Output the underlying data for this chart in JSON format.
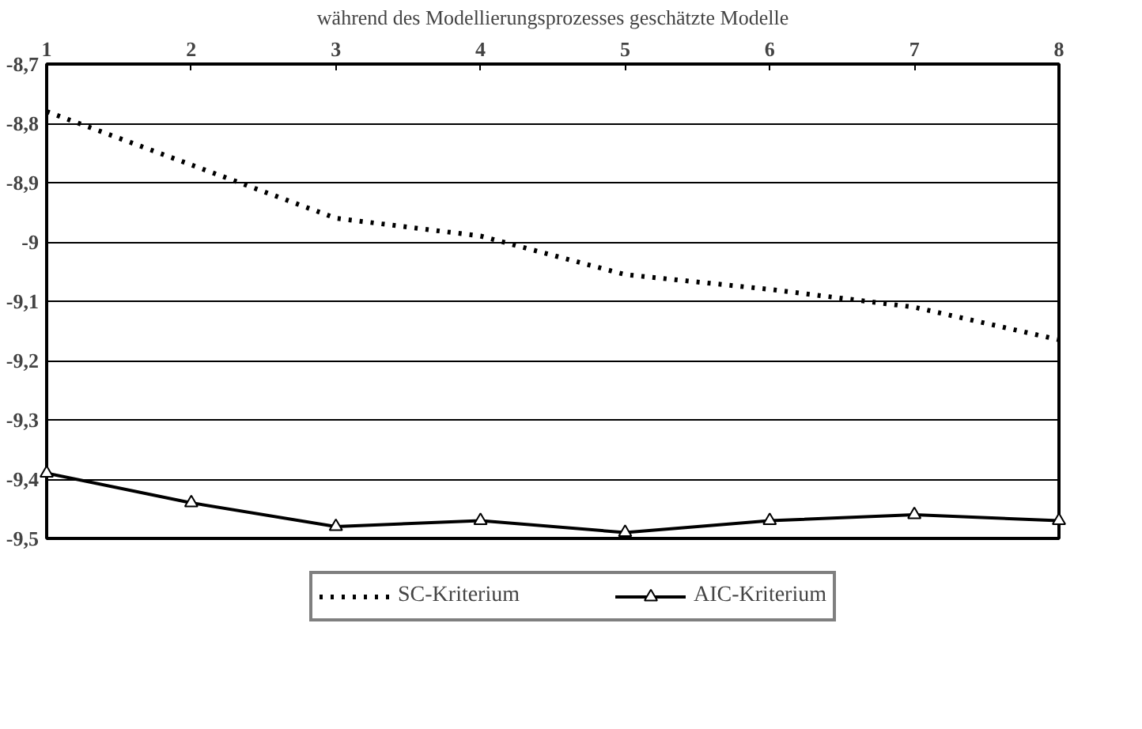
{
  "chart_data": {
    "type": "line",
    "xlabel": "während des Modellierungsprozesses geschätzte Modelle",
    "x": [
      1,
      2,
      3,
      4,
      5,
      6,
      7,
      8
    ],
    "xlim": [
      1,
      8
    ],
    "xticks": [
      1,
      2,
      3,
      4,
      5,
      6,
      7,
      8
    ],
    "ylim": [
      -9.5,
      -8.7
    ],
    "yticks": [
      {
        "value": -9.5,
        "label": "-9,5"
      },
      {
        "value": -9.4,
        "label": "-9,4"
      },
      {
        "value": -9.3,
        "label": "-9,3"
      },
      {
        "value": -9.2,
        "label": "-9,2"
      },
      {
        "value": -9.1,
        "label": "-9,1"
      },
      {
        "value": -9.0,
        "label": "-9"
      },
      {
        "value": -8.9,
        "label": "-8,9"
      },
      {
        "value": -8.8,
        "label": "-8,8"
      },
      {
        "value": -8.7,
        "label": "-8,7"
      }
    ],
    "grid": "y",
    "legend": "bottom",
    "series": [
      {
        "name": "SC-Kriterium",
        "color": "#000000",
        "line_style": "dotted",
        "marker": "none",
        "values": [
          -8.78,
          -8.87,
          -8.96,
          -8.99,
          -9.055,
          -9.08,
          -9.11,
          -9.165
        ]
      },
      {
        "name": "AIC-Kriterium",
        "color": "#000000",
        "line_style": "solid",
        "marker": "triangle",
        "values": [
          -9.39,
          -9.44,
          -9.48,
          -9.47,
          -9.49,
          -9.47,
          -9.46,
          -9.47
        ]
      }
    ]
  }
}
